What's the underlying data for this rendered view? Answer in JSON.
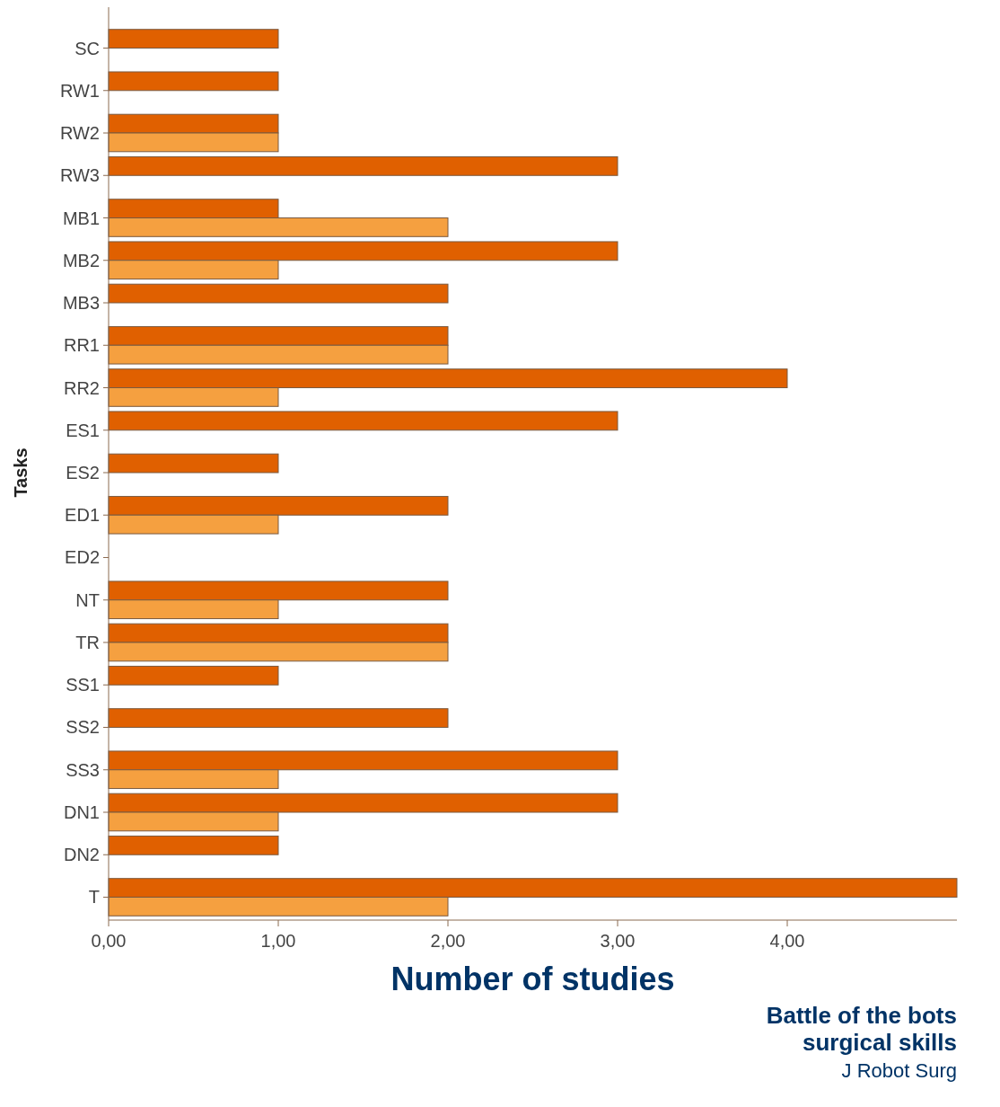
{
  "chart_data": {
    "type": "bar",
    "orientation": "horizontal",
    "ylabel": "Tasks",
    "xlabel": "Number of studies",
    "categories": [
      "SC",
      "RW1",
      "RW2",
      "RW3",
      "MB1",
      "MB2",
      "MB3",
      "RR1",
      "RR2",
      "ES1",
      "ES2",
      "ED1",
      "ED2",
      "NT",
      "TR",
      "SS1",
      "SS2",
      "SS3",
      "DN1",
      "DN2",
      "T"
    ],
    "series": [
      {
        "color": "#e06000",
        "values": [
          1,
          1,
          1,
          3,
          1,
          3,
          2,
          2,
          4,
          3,
          1,
          2,
          null,
          2,
          2,
          1,
          2,
          3,
          3,
          1,
          5
        ]
      },
      {
        "color": "#f5a040",
        "values": [
          null,
          null,
          1,
          null,
          2,
          1,
          null,
          2,
          1,
          null,
          null,
          1,
          null,
          1,
          2,
          null,
          null,
          1,
          1,
          null,
          2
        ]
      }
    ],
    "xlim": [
      0,
      5
    ],
    "xticks": [
      {
        "value": 0,
        "label": "0,00"
      },
      {
        "value": 1,
        "label": "1,00"
      },
      {
        "value": 2,
        "label": "2,00"
      },
      {
        "value": 3,
        "label": "3,00"
      },
      {
        "value": 4,
        "label": "4,00"
      }
    ],
    "grid": false,
    "annotations": [
      "Battle of the bots",
      "surgical skills",
      "J Robot Surg"
    ]
  }
}
